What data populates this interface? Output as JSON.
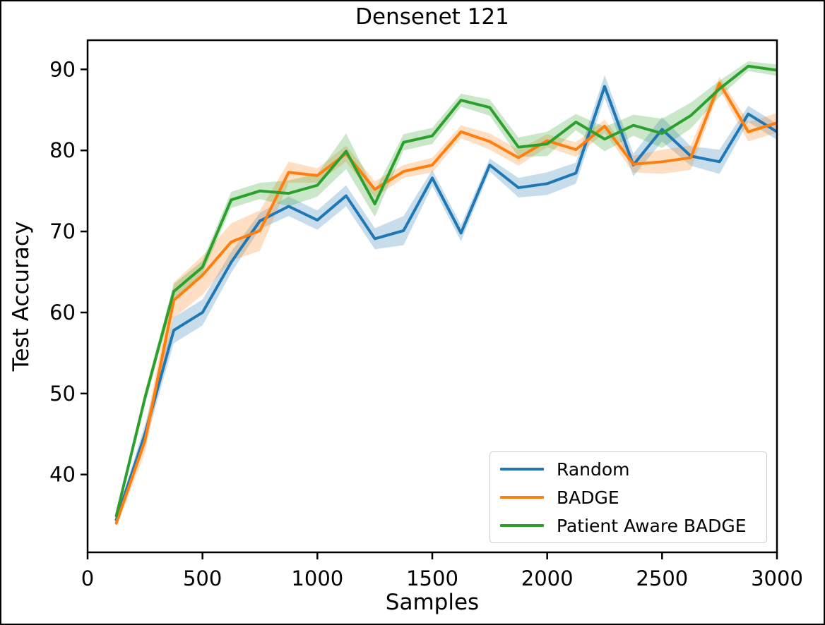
{
  "figure": {
    "title": "Densenet 121",
    "xlabel": "Samples",
    "ylabel": "Test Accuracy"
  },
  "chart_data": {
    "type": "line",
    "title": "Densenet 121",
    "xlabel": "Samples",
    "ylabel": "Test Accuracy",
    "grid": false,
    "legend_position": "lower right",
    "xlim": [
      0,
      3000
    ],
    "ylim": [
      30.4,
      93.6
    ],
    "xticks": [
      0,
      500,
      1000,
      1500,
      2000,
      2500,
      3000
    ],
    "yticks": [
      40,
      50,
      60,
      70,
      80,
      90
    ],
    "band_opacity": 0.25,
    "x": [
      125,
      250,
      375,
      500,
      625,
      750,
      875,
      1000,
      1125,
      1250,
      1375,
      1500,
      1625,
      1750,
      1875,
      2000,
      2125,
      2250,
      2375,
      2500,
      2625,
      2750,
      2875,
      3000
    ],
    "series": [
      {
        "name": "Random",
        "color": "#1f77b4",
        "values": [
          34.4,
          45.0,
          57.8,
          60.0,
          66.2,
          71.3,
          73.1,
          71.4,
          74.4,
          69.1,
          70.1,
          76.6,
          69.8,
          78.2,
          75.4,
          75.9,
          77.2,
          87.9,
          78.2,
          82.6,
          79.3,
          78.6,
          84.5,
          82.3
        ],
        "band_halfwidth": [
          0.5,
          1.2,
          1.6,
          1.6,
          1.3,
          1.0,
          1.2,
          1.2,
          1.3,
          1.3,
          1.8,
          1.0,
          1.0,
          0.8,
          1.2,
          1.4,
          1.3,
          1.4,
          1.4,
          1.5,
          1.2,
          1.5,
          1.0,
          1.0
        ]
      },
      {
        "name": "BADGE",
        "color": "#ff7f0e",
        "values": [
          34.0,
          44.2,
          61.5,
          64.6,
          68.7,
          70.1,
          77.3,
          76.9,
          79.6,
          75.2,
          77.4,
          78.2,
          82.3,
          81.1,
          79.1,
          81.2,
          80.1,
          83.0,
          78.3,
          78.6,
          79.1,
          88.3,
          82.3,
          83.4
        ],
        "band_halfwidth": [
          0.5,
          1.5,
          2.2,
          2.4,
          2.3,
          2.5,
          1.3,
          0.9,
          1.0,
          1.0,
          0.8,
          0.9,
          0.8,
          1.0,
          1.0,
          0.8,
          0.9,
          0.8,
          1.0,
          1.5,
          1.5,
          0.8,
          1.2,
          1.2
        ]
      },
      {
        "name": "Patient Aware BADGE",
        "color": "#2ca02c",
        "values": [
          34.9,
          49.5,
          62.6,
          65.6,
          73.9,
          75.0,
          74.7,
          75.7,
          79.9,
          73.4,
          81.0,
          81.8,
          86.2,
          85.3,
          80.4,
          80.8,
          83.5,
          81.4,
          83.1,
          82.1,
          84.3,
          87.6,
          90.4,
          89.9
        ],
        "band_halfwidth": [
          0.4,
          0.8,
          0.9,
          0.8,
          1.0,
          1.0,
          1.6,
          1.4,
          2.2,
          1.6,
          1.0,
          1.0,
          0.8,
          1.0,
          1.2,
          1.5,
          1.0,
          1.5,
          1.3,
          1.8,
          1.6,
          1.0,
          0.6,
          0.7
        ]
      }
    ]
  }
}
